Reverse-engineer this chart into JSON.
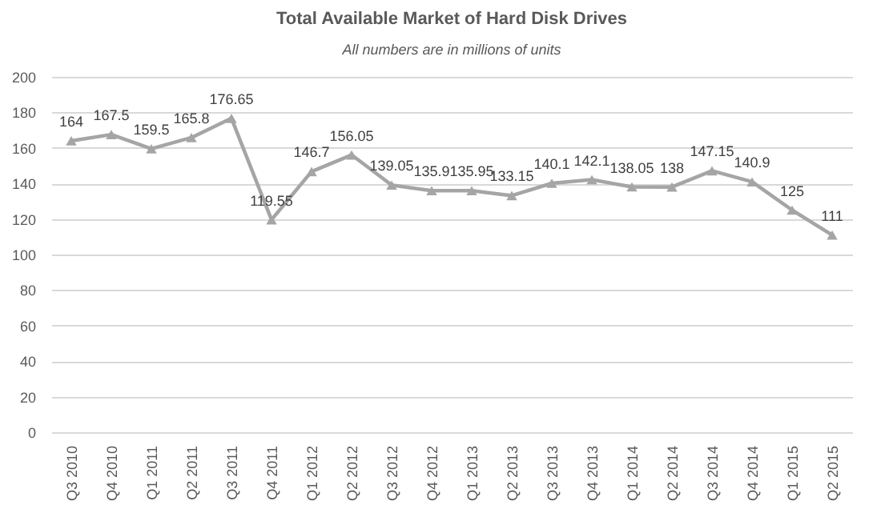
{
  "chart_data": {
    "type": "line",
    "title": "Total Available Market of Hard Disk Drives",
    "subtitle": "All numbers are in millions of units",
    "categories": [
      "Q3 2010",
      "Q4 2010",
      "Q1 2011",
      "Q2 2011",
      "Q3 2011",
      "Q4 2011",
      "Q1 2012",
      "Q2 2012",
      "Q3 2012",
      "Q4 2012",
      "Q1 2013",
      "Q2 2013",
      "Q3 2013",
      "Q4 2013",
      "Q1 2014",
      "Q2 2014",
      "Q3 2014",
      "Q4 2014",
      "Q1 2015",
      "Q2 2015"
    ],
    "series": [
      {
        "color": "#a5a5a5",
        "values": [
          164,
          167.5,
          159.5,
          165.8,
          176.65,
          119.55,
          146.7,
          156.05,
          139.05,
          135.9,
          135.95,
          133.15,
          140.1,
          142.1,
          138.05,
          138,
          147.15,
          140.9,
          125,
          111
        ]
      }
    ],
    "ylim": [
      0,
      200
    ],
    "yticks": [
      0,
      20,
      40,
      60,
      80,
      100,
      120,
      140,
      160,
      180,
      200
    ],
    "grid": "y",
    "marker": "triangle",
    "line_style": "solid",
    "data_labels": true
  }
}
